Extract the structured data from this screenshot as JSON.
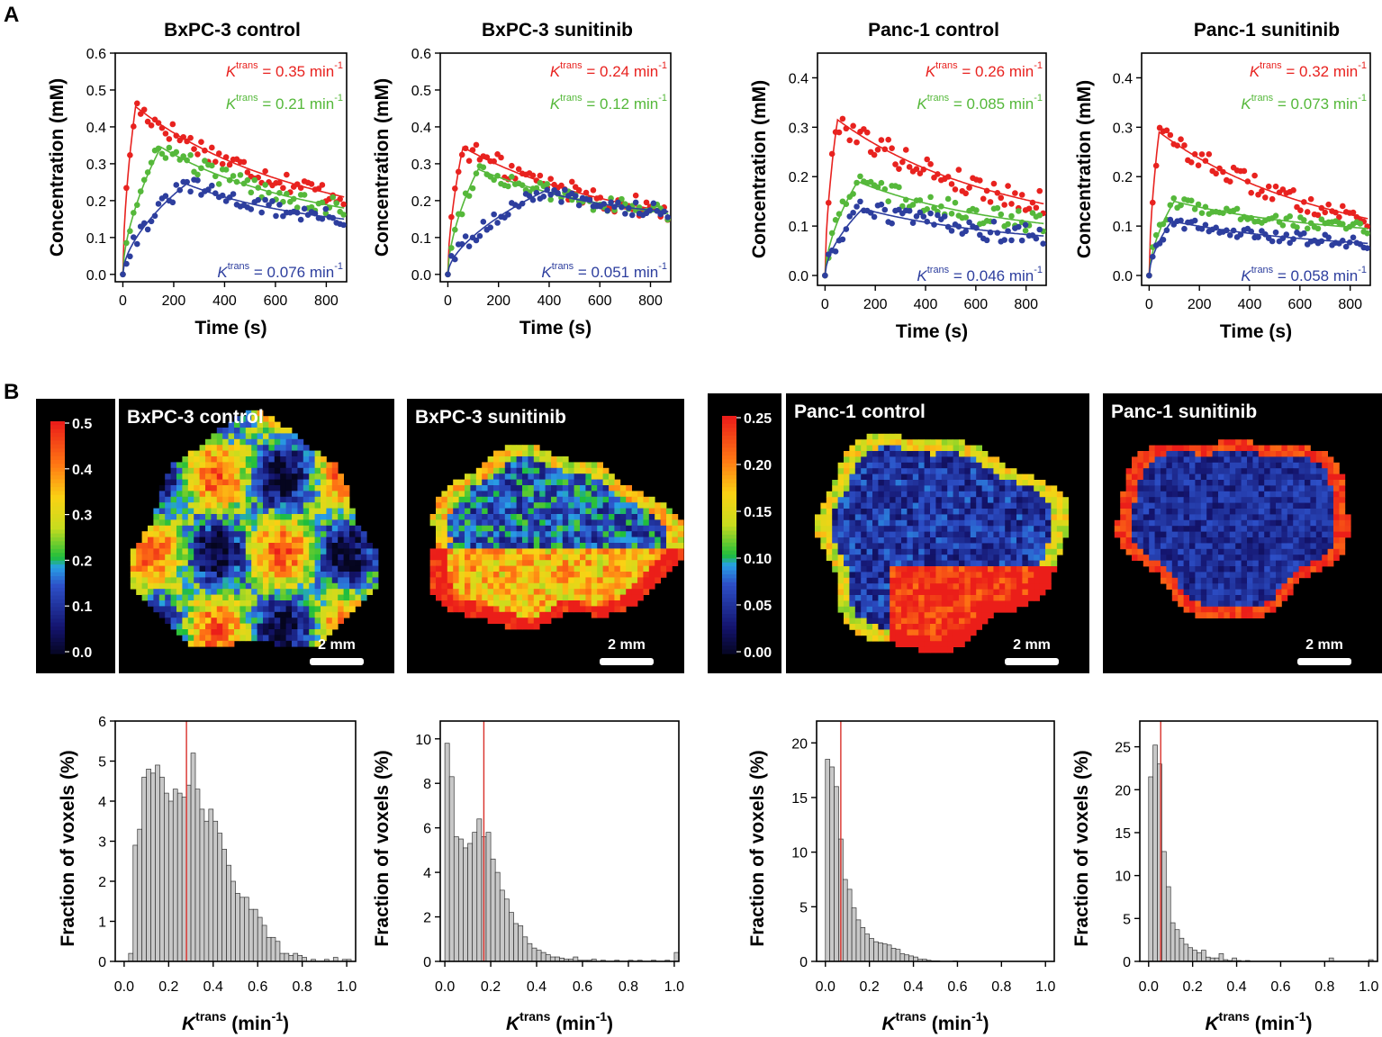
{
  "panel_labels": {
    "a": "A",
    "b": "B"
  },
  "colors": {
    "red": "#e8221f",
    "green": "#55b83a",
    "blue": "#2d3e9e",
    "hist_fill": "#c8c8c8",
    "median_line": "#d9302a"
  },
  "common": {
    "time_label": "Time (s)",
    "conc_label": "Concentration (mM)",
    "hist_ylabel": "Fraction of voxels (%)",
    "ktrans_K": "K",
    "ktrans_sup": "trans",
    "ktrans_unit_pre": " (min",
    "ktrans_unit_sup": "-1",
    "ktrans_unit_post": ")",
    "scale_bar": "2 mm"
  },
  "maps": [
    {
      "title": "BxPC-3 control"
    },
    {
      "title": "BxPC-3 sunitinib"
    },
    {
      "title": "Panc-1 control"
    },
    {
      "title": "Panc-1 sunitinib"
    }
  ],
  "colorbars": [
    {
      "ticks": [
        "0.5",
        "0.4",
        "0.3",
        "0.2",
        "0.1",
        "0.0"
      ]
    },
    {
      "ticks": [
        "0.25",
        "0.20",
        "0.15",
        "0.10",
        "0.05",
        "0.00"
      ]
    }
  ],
  "chart_data": [
    {
      "type": "scatter",
      "title": "BxPC-3 control",
      "xlabel": "Time (s)",
      "ylabel": "Concentration (mM)",
      "xlim": [
        -30,
        880
      ],
      "ylim": [
        -0.02,
        0.6
      ],
      "xticks": [
        0,
        200,
        400,
        600,
        800
      ],
      "yticks": [
        0.0,
        0.1,
        0.2,
        0.3,
        0.4,
        0.5,
        0.6
      ],
      "series": [
        {
          "name": "red",
          "ktrans_value": "0.35",
          "unit": "min",
          "label_pos": "top",
          "peak": 0.455,
          "tpeak": 50,
          "end": 0.21,
          "noise": 0.028
        },
        {
          "name": "green",
          "ktrans_value": "0.21",
          "unit": "min",
          "label_pos": "upper",
          "peak": 0.345,
          "tpeak": 150,
          "end": 0.18,
          "noise": 0.025
        },
        {
          "name": "blue",
          "ktrans_value": "0.076",
          "unit": "min",
          "label_pos": "bottom",
          "peak": 0.245,
          "tpeak": 250,
          "end": 0.15,
          "noise": 0.022
        }
      ]
    },
    {
      "type": "scatter",
      "title": "BxPC-3 sunitinib",
      "xlabel": "Time (s)",
      "ylabel": "Concentration (mM)",
      "xlim": [
        -30,
        880
      ],
      "ylim": [
        -0.02,
        0.6
      ],
      "xticks": [
        0,
        200,
        400,
        600,
        800
      ],
      "yticks": [
        0.0,
        0.1,
        0.2,
        0.3,
        0.4,
        0.5,
        0.6
      ],
      "series": [
        {
          "name": "red",
          "ktrans_value": "0.24",
          "unit": "min",
          "label_pos": "top",
          "peak": 0.345,
          "tpeak": 60,
          "end": 0.17,
          "noise": 0.03
        },
        {
          "name": "green",
          "ktrans_value": "0.12",
          "unit": "min",
          "label_pos": "upper",
          "peak": 0.285,
          "tpeak": 120,
          "end": 0.165,
          "noise": 0.022
        },
        {
          "name": "blue",
          "ktrans_value": "0.051",
          "unit": "min",
          "label_pos": "bottom",
          "peak": 0.225,
          "tpeak": 380,
          "end": 0.17,
          "noise": 0.02
        }
      ]
    },
    {
      "type": "scatter",
      "title": "Panc-1 control",
      "xlabel": "Time (s)",
      "ylabel": "Concentration (mM)",
      "xlim": [
        -30,
        880
      ],
      "ylim": [
        -0.02,
        0.45
      ],
      "xticks": [
        0,
        200,
        400,
        600,
        800
      ],
      "yticks": [
        0.0,
        0.1,
        0.2,
        0.3,
        0.4
      ],
      "series": [
        {
          "name": "red",
          "ktrans_value": "0.26",
          "unit": "min",
          "label_pos": "top",
          "peak": 0.315,
          "tpeak": 50,
          "end": 0.145,
          "noise": 0.025
        },
        {
          "name": "green",
          "ktrans_value": "0.085",
          "unit": "min",
          "label_pos": "upper",
          "peak": 0.19,
          "tpeak": 130,
          "end": 0.105,
          "noise": 0.02
        },
        {
          "name": "blue",
          "ktrans_value": "0.046",
          "unit": "min",
          "label_pos": "bottom",
          "peak": 0.135,
          "tpeak": 150,
          "end": 0.08,
          "noise": 0.02
        }
      ]
    },
    {
      "type": "scatter",
      "title": "Panc-1 sunitinib",
      "xlabel": "Time (s)",
      "ylabel": "Concentration (mM)",
      "xlim": [
        -30,
        880
      ],
      "ylim": [
        -0.02,
        0.45
      ],
      "xticks": [
        0,
        200,
        400,
        600,
        800
      ],
      "yticks": [
        0.0,
        0.1,
        0.2,
        0.3,
        0.4
      ],
      "series": [
        {
          "name": "red",
          "ktrans_value": "0.32",
          "unit": "min",
          "label_pos": "top",
          "peak": 0.29,
          "tpeak": 40,
          "end": 0.115,
          "noise": 0.02
        },
        {
          "name": "green",
          "ktrans_value": "0.073",
          "unit": "min",
          "label_pos": "upper",
          "peak": 0.15,
          "tpeak": 100,
          "end": 0.095,
          "noise": 0.012
        },
        {
          "name": "blue",
          "ktrans_value": "0.058",
          "unit": "min",
          "label_pos": "bottom",
          "peak": 0.11,
          "tpeak": 90,
          "end": 0.065,
          "noise": 0.012
        }
      ]
    },
    {
      "type": "bar",
      "xlabel": "Ktrans (min-1)",
      "ylabel": "Fraction of voxels (%)",
      "xlim": [
        -0.04,
        1.04
      ],
      "ylim": [
        0,
        6
      ],
      "xticks": [
        "0.0",
        "0.2",
        "0.4",
        "0.6",
        "0.8",
        "1.0"
      ],
      "yticks": [
        0,
        1,
        2,
        3,
        4,
        5,
        6
      ],
      "bin_start": 0.02,
      "bin_width": 0.02,
      "values": [
        0.2,
        2.9,
        3.3,
        4.6,
        4.8,
        4.7,
        4.9,
        4.6,
        4.2,
        4.0,
        4.3,
        4.2,
        4.1,
        4.4,
        5.2,
        4.3,
        3.8,
        3.5,
        3.8,
        3.5,
        3.2,
        2.8,
        2.4,
        2.0,
        1.7,
        1.6,
        1.6,
        1.3,
        1.3,
        1.1,
        0.9,
        0.6,
        0.6,
        0.5,
        0.2,
        0.2,
        0.15,
        0.2,
        0.15,
        0.1,
        0.0,
        0.05,
        0.0,
        0.0,
        0.05,
        0.0,
        0.1,
        0.0,
        0.05,
        0.05
      ],
      "median": 0.28
    },
    {
      "type": "bar",
      "xlabel": "Ktrans (min-1)",
      "ylabel": "Fraction of voxels (%)",
      "xlim": [
        -0.02,
        1.02
      ],
      "ylim": [
        0,
        10.8
      ],
      "xticks": [
        "0.0",
        "0.2",
        "0.4",
        "0.6",
        "0.8",
        "1.0"
      ],
      "yticks": [
        0,
        2,
        4,
        6,
        8,
        10
      ],
      "bin_start": 0.0,
      "bin_width": 0.02,
      "values": [
        9.8,
        8.3,
        5.6,
        5.5,
        5.1,
        5.3,
        5.8,
        6.4,
        5.6,
        5.8,
        4.6,
        4.0,
        3.2,
        2.8,
        2.2,
        1.7,
        1.6,
        1.1,
        0.8,
        0.6,
        0.5,
        0.4,
        0.3,
        0.2,
        0.2,
        0.15,
        0.1,
        0.1,
        0.2,
        0.05,
        0.05,
        0.05,
        0.1,
        0.0,
        0.05,
        0.0,
        0.0,
        0.05,
        0.0,
        0.0,
        0.05,
        0.0,
        0.05,
        0.0,
        0.0,
        0.05,
        0.0,
        0.0,
        0.05,
        0.0,
        0.4
      ],
      "median": 0.17
    },
    {
      "type": "bar",
      "xlabel": "Ktrans (min-1)",
      "ylabel": "Fraction of voxels (%)",
      "xlim": [
        -0.04,
        1.04
      ],
      "ylim": [
        0,
        22
      ],
      "xticks": [
        "0.0",
        "0.2",
        "0.4",
        "0.6",
        "0.8",
        "1.0"
      ],
      "yticks": [
        0,
        5,
        10,
        15,
        20
      ],
      "bin_start": 0.0,
      "bin_width": 0.02,
      "values": [
        18.5,
        17.8,
        16.0,
        11.2,
        7.5,
        6.6,
        4.9,
        3.8,
        3.1,
        2.5,
        2.1,
        1.8,
        1.7,
        1.6,
        1.5,
        1.2,
        1.1,
        0.7,
        0.6,
        0.5,
        0.4,
        0.2,
        0.2,
        0.1,
        0.05,
        0.05,
        0.0,
        0.0,
        0.0,
        0.05
      ],
      "median": 0.07
    },
    {
      "type": "bar",
      "xlabel": "Ktrans (min-1)",
      "ylabel": "Fraction of voxels (%)",
      "xlim": [
        -0.04,
        1.04
      ],
      "ylim": [
        0,
        28
      ],
      "xticks": [
        "0.0",
        "0.2",
        "0.4",
        "0.6",
        "0.8",
        "1.0"
      ],
      "yticks": [
        0,
        5,
        10,
        15,
        20,
        25
      ],
      "bin_start": 0.0,
      "bin_width": 0.02,
      "values": [
        21.5,
        25.2,
        23.0,
        12.8,
        8.7,
        4.5,
        3.7,
        2.7,
        2.0,
        1.6,
        1.3,
        1.0,
        1.3,
        0.5,
        0.4,
        0.4,
        0.9,
        0.2,
        0.1,
        0.4,
        0.1,
        0.0,
        0.1,
        0.0,
        0.0,
        0.0,
        0.0,
        0.0,
        0.0,
        0.0,
        0.0,
        0.0,
        0.0,
        0.0,
        0.0,
        0.0,
        0.0,
        0.0,
        0.0,
        0.0,
        0.0,
        0.4,
        0.0,
        0.0,
        0.0,
        0.0,
        0.0,
        0.0,
        0.0,
        0.0,
        0.2
      ],
      "median": 0.055
    }
  ]
}
